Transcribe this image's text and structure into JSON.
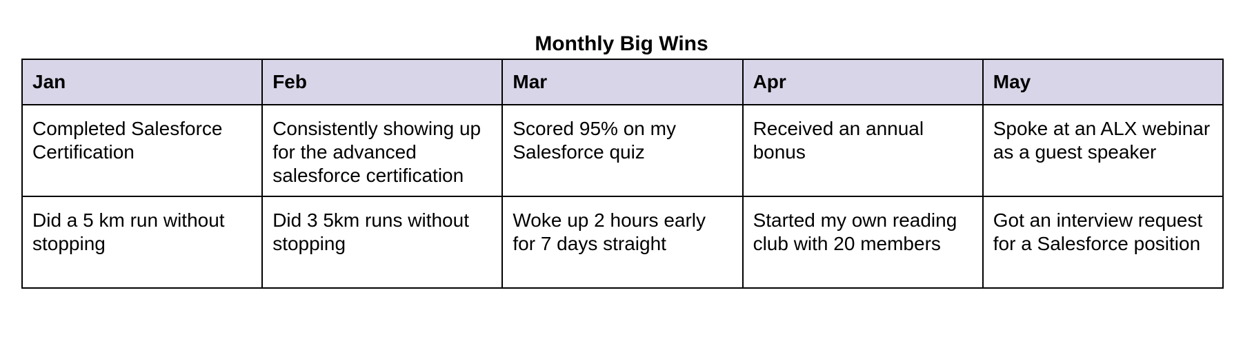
{
  "title": "Monthly Big Wins",
  "colors": {
    "header_background": "#d9d5e8",
    "border": "#000000",
    "text": "#000000"
  },
  "table": {
    "headers": [
      "Jan",
      "Feb",
      "Mar",
      "Apr",
      "May"
    ],
    "rows": [
      [
        "Completed Salesforce Certification",
        "Consistently showing up for the advanced salesforce certification",
        "Scored 95% on my Salesforce quiz",
        "Received an annual bonus",
        "Spoke at an ALX webinar as a guest speaker"
      ],
      [
        "Did a 5 km run without stopping",
        "Did 3 5km runs without stopping",
        "Woke up 2 hours early for 7 days straight",
        "Started my own reading club with 20 members",
        "Got an interview request for a Salesforce position"
      ]
    ]
  }
}
